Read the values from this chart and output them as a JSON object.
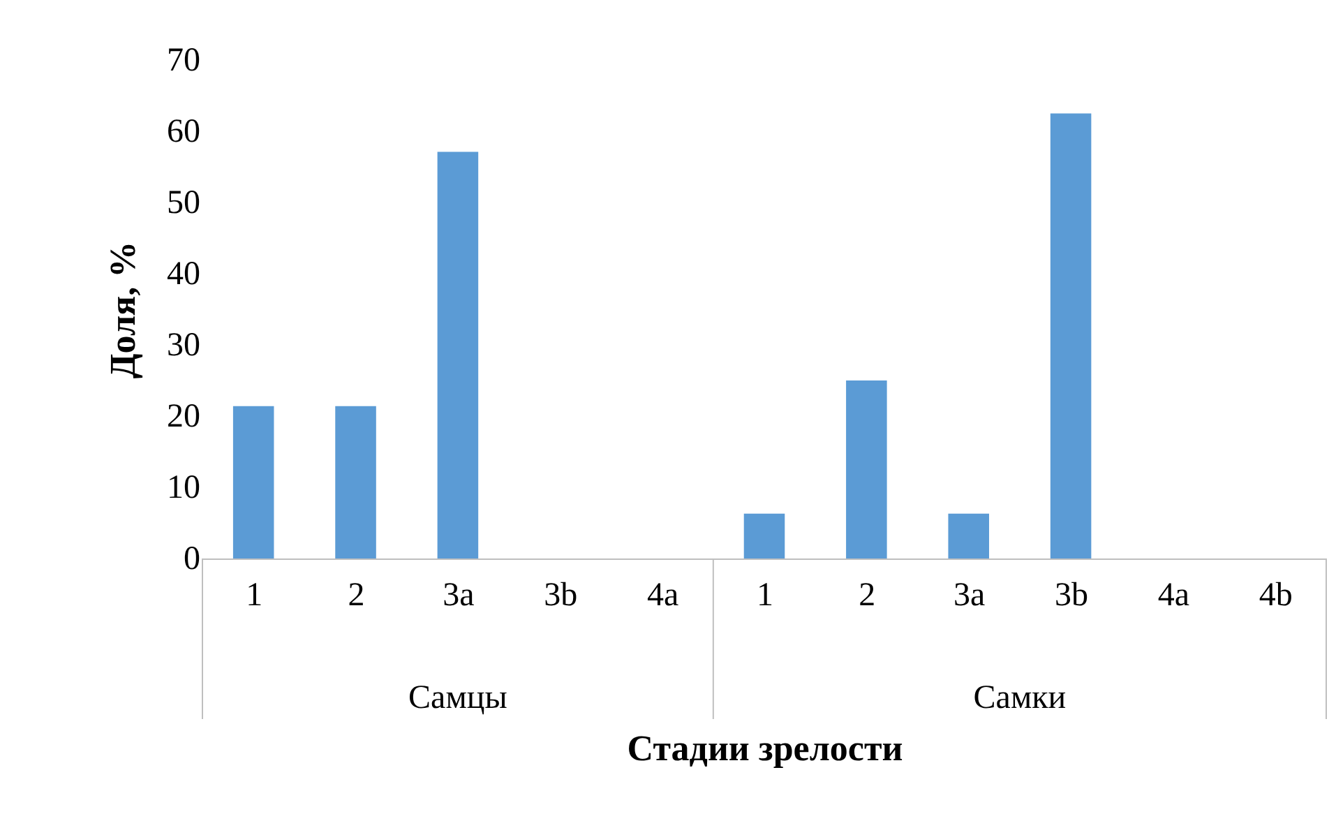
{
  "chart_data": {
    "type": "bar",
    "xlabel": "Стадии зрелости",
    "ylabel": "Доля, %",
    "categories": [
      "1",
      "2",
      "3a",
      "3b",
      "4a",
      "1",
      "2",
      "3a",
      "3b",
      "4a",
      "4b"
    ],
    "series": [
      {
        "color": "#5b9bd5",
        "values": [
          21.4,
          21.4,
          57.1,
          0,
          0,
          6.3,
          25,
          6.3,
          62.5,
          0,
          0
        ]
      }
    ],
    "annotations": [
      "Самцы",
      "Самки"
    ],
    "ylim": [
      0,
      70
    ],
    "yticks": [
      0,
      10,
      20,
      30,
      40,
      50,
      60,
      70
    ],
    "grid": false
  }
}
